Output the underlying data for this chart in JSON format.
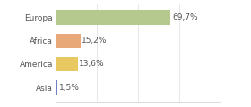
{
  "categories": [
    "Europa",
    "Africa",
    "America",
    "Asia"
  ],
  "values": [
    69.7,
    15.2,
    13.6,
    1.5
  ],
  "labels": [
    "69,7%",
    "15,2%",
    "13,6%",
    "1,5%"
  ],
  "bar_colors": [
    "#b5c98e",
    "#e8a878",
    "#e8c860",
    "#7080c0"
  ],
  "background_color": "#ffffff",
  "xlim": [
    0,
    100
  ],
  "bar_height": 0.62,
  "label_fontsize": 6.5,
  "tick_fontsize": 6.5,
  "grid_color": "#dddddd",
  "text_color": "#555555"
}
